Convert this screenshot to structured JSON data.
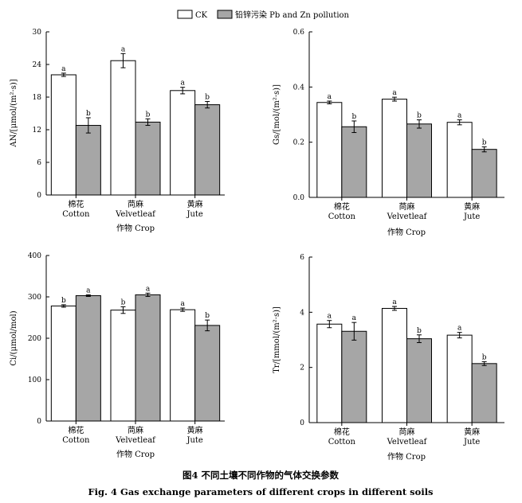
{
  "legend": {
    "ck": "CK",
    "pollution": "铅锌污染 Pb and Zn pollution"
  },
  "caption": {
    "cn": "图4   不同土壤不同作物的气体交换参数",
    "en": "Fig. 4    Gas exchange parameters of different crops in different soils"
  },
  "colors": {
    "ck": "#ffffff",
    "pollution": "#a6a6a6",
    "stroke": "#000000"
  },
  "chart_data": [
    {
      "type": "bar",
      "ylabel": "AN/[μmol/(m²·s)]",
      "xlabel": "作物  Crop",
      "categories": [
        [
          "棉花",
          "Cotton"
        ],
        [
          "苘麻",
          "Velvetleaf"
        ],
        [
          "黄麻",
          "Jute"
        ]
      ],
      "ylim": [
        0,
        30
      ],
      "yticks": [
        "0",
        "6",
        "12",
        "18",
        "24",
        "30"
      ],
      "series": [
        {
          "name": "CK",
          "values": [
            22.1,
            24.7,
            19.2
          ],
          "errors": [
            0.3,
            1.3,
            0.6
          ],
          "letters": [
            "a",
            "a",
            "a"
          ]
        },
        {
          "name": "铅锌污染 Pb and Zn pollution",
          "values": [
            12.8,
            13.4,
            16.6
          ],
          "errors": [
            1.4,
            0.6,
            0.6
          ],
          "letters": [
            "b",
            "b",
            "b"
          ]
        }
      ]
    },
    {
      "type": "bar",
      "ylabel": "Gs/[mol/(m²·s)]",
      "xlabel": "作物  Crop",
      "categories": [
        [
          "棉花",
          "Cotton"
        ],
        [
          "苘麻",
          "Velvetleaf"
        ],
        [
          "黄麻",
          "Jute"
        ]
      ],
      "ylim": [
        0,
        0.6
      ],
      "yticks": [
        "0.0",
        "0.2",
        "0.4",
        "0.6"
      ],
      "series": [
        {
          "name": "CK",
          "values": [
            0.344,
            0.356,
            0.272
          ],
          "errors": [
            0.005,
            0.007,
            0.009
          ],
          "letters": [
            "a",
            "a",
            "a"
          ]
        },
        {
          "name": "铅锌污染 Pb and Zn pollution",
          "values": [
            0.256,
            0.266,
            0.174
          ],
          "errors": [
            0.021,
            0.015,
            0.009
          ],
          "letters": [
            "b",
            "b",
            "b"
          ]
        }
      ]
    },
    {
      "type": "bar",
      "ylabel": "Ci/(μmol/mol)",
      "xlabel": "作物  Crop",
      "categories": [
        [
          "棉花",
          "Cotton"
        ],
        [
          "苘麻",
          "Velvetleaf"
        ],
        [
          "黄麻",
          "Jute"
        ]
      ],
      "ylim": [
        0,
        400
      ],
      "yticks": [
        "0",
        "100",
        "200",
        "300",
        "400"
      ],
      "series": [
        {
          "name": "CK",
          "values": [
            278,
            268,
            269
          ],
          "errors": [
            3,
            8,
            4
          ],
          "letters": [
            "b",
            "b",
            "a"
          ]
        },
        {
          "name": "铅锌污染 Pb and Zn pollution",
          "values": [
            303,
            305,
            231
          ],
          "errors": [
            2,
            4,
            13
          ],
          "letters": [
            "a",
            "a",
            "b"
          ]
        }
      ]
    },
    {
      "type": "bar",
      "ylabel": "Tr/[mmol/(m²·s)]",
      "xlabel": "作物  Crop",
      "categories": [
        [
          "棉花",
          "Cotton"
        ],
        [
          "苘麻",
          "Velvetleaf"
        ],
        [
          "黄麻",
          "Jute"
        ]
      ],
      "ylim": [
        0,
        6
      ],
      "yticks": [
        "0",
        "2",
        "4",
        "6"
      ],
      "series": [
        {
          "name": "CK",
          "values": [
            3.57,
            4.14,
            3.17
          ],
          "errors": [
            0.13,
            0.07,
            0.1
          ],
          "letters": [
            "a",
            "a",
            "a"
          ]
        },
        {
          "name": "铅锌污染 Pb and Zn pollution",
          "values": [
            3.31,
            3.04,
            2.14
          ],
          "errors": [
            0.32,
            0.14,
            0.07
          ],
          "letters": [
            "a",
            "b",
            "b"
          ]
        }
      ]
    }
  ]
}
